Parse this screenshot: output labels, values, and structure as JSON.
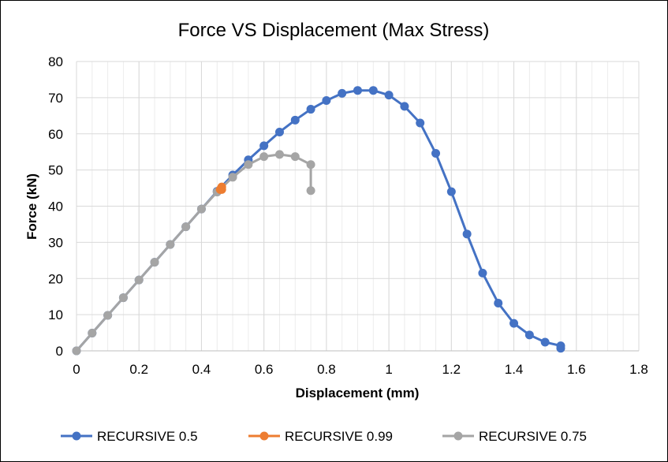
{
  "chart_data": {
    "type": "line",
    "title": "Force VS Displacement (Max Stress)",
    "xlabel": "Displacement (mm)",
    "ylabel": "Force (kN)",
    "xlim": [
      0,
      1.8
    ],
    "ylim": [
      0,
      80
    ],
    "xticks": [
      0,
      0.2,
      0.4,
      0.6,
      0.8,
      1,
      1.2,
      1.4,
      1.6,
      1.8
    ],
    "yticks": [
      0,
      10,
      20,
      30,
      40,
      50,
      60,
      70,
      80
    ],
    "xtick_labels": [
      "0",
      "0.2",
      "0.4",
      "0.6",
      "0.8",
      "1",
      "1.2",
      "1.4",
      "1.6",
      "1.8"
    ],
    "ytick_labels": [
      "0",
      "10",
      "20",
      "30",
      "40",
      "50",
      "60",
      "70",
      "80"
    ],
    "grid": {
      "major": true,
      "minor_x": true
    },
    "legend_position": "bottom",
    "series": [
      {
        "name": "RECURSIVE 0.5",
        "color": "#4472C4",
        "x": [
          0,
          0.05,
          0.1,
          0.15,
          0.2,
          0.25,
          0.3,
          0.35,
          0.4,
          0.45,
          0.5,
          0.55,
          0.6,
          0.65,
          0.7,
          0.75,
          0.8,
          0.85,
          0.9,
          0.95,
          1.0,
          1.05,
          1.1,
          1.15,
          1.2,
          1.25,
          1.3,
          1.35,
          1.4,
          1.45,
          1.5,
          1.55,
          1.55
        ],
        "y": [
          0,
          4.9,
          9.8,
          14.7,
          19.6,
          24.5,
          29.4,
          34.3,
          39.2,
          44.1,
          48.6,
          52.8,
          56.7,
          60.5,
          63.8,
          66.8,
          69.2,
          71.2,
          72.0,
          72.0,
          70.7,
          67.6,
          63.0,
          54.6,
          44.0,
          32.3,
          21.5,
          13.2,
          7.6,
          4.4,
          2.4,
          1.4,
          0.7
        ]
      },
      {
        "name": "RECURSIVE 0.99",
        "color": "#ED7D31",
        "x": [
          0.46,
          0.465,
          0.465
        ],
        "y": [
          44.6,
          45.3,
          44.6
        ]
      },
      {
        "name": "RECURSIVE 0.75",
        "color": "#A5A5A5",
        "x": [
          0,
          0.05,
          0.1,
          0.15,
          0.2,
          0.25,
          0.3,
          0.35,
          0.4,
          0.45,
          0.5,
          0.55,
          0.6,
          0.65,
          0.7,
          0.75,
          0.75
        ],
        "y": [
          0,
          4.9,
          9.8,
          14.7,
          19.6,
          24.5,
          29.4,
          34.3,
          39.2,
          43.9,
          48.0,
          51.5,
          53.7,
          54.3,
          53.7,
          51.5,
          44.3
        ]
      }
    ]
  }
}
